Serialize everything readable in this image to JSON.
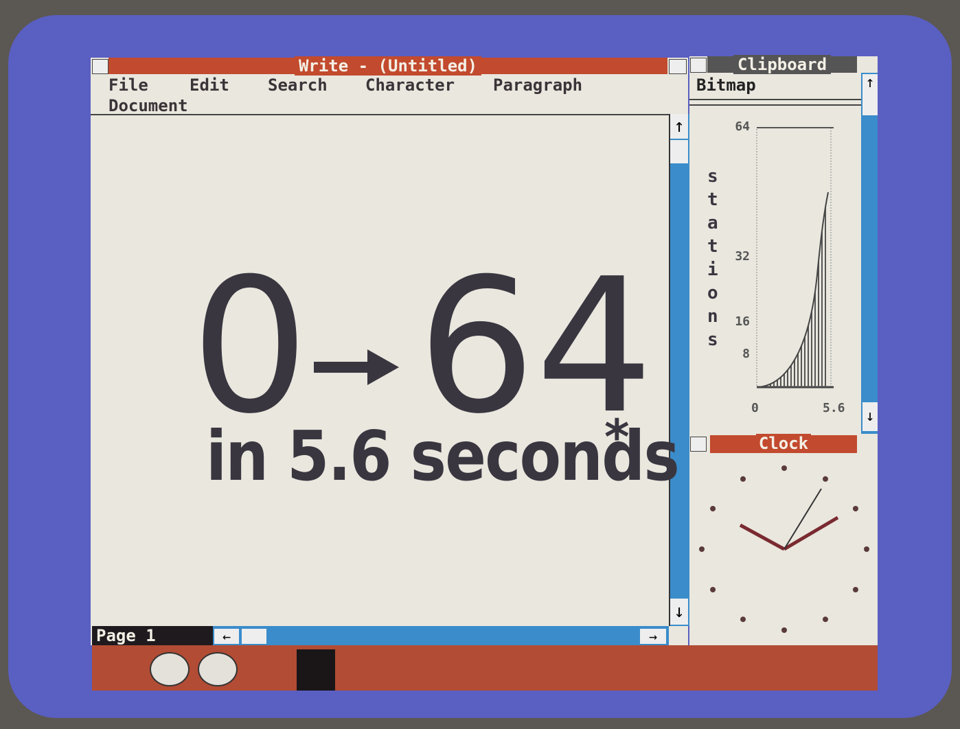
{
  "write_window": {
    "title": "Write - (Untitled)",
    "menu": [
      "File",
      "Edit",
      "Search",
      "Character",
      "Paragraph",
      "Document"
    ],
    "document": {
      "from": "0",
      "to": "64",
      "line2": "in 5.6 seconds",
      "footnote_mark": "*"
    },
    "status": "Page 1"
  },
  "clipboard_window": {
    "title": "Clipboard",
    "format": "Bitmap",
    "chart": {
      "y_label": "stations",
      "y_ticks": [
        64,
        32,
        16,
        8
      ],
      "x_ticks": [
        0,
        5.6
      ]
    }
  },
  "clock_window": {
    "title": "Clock"
  }
}
